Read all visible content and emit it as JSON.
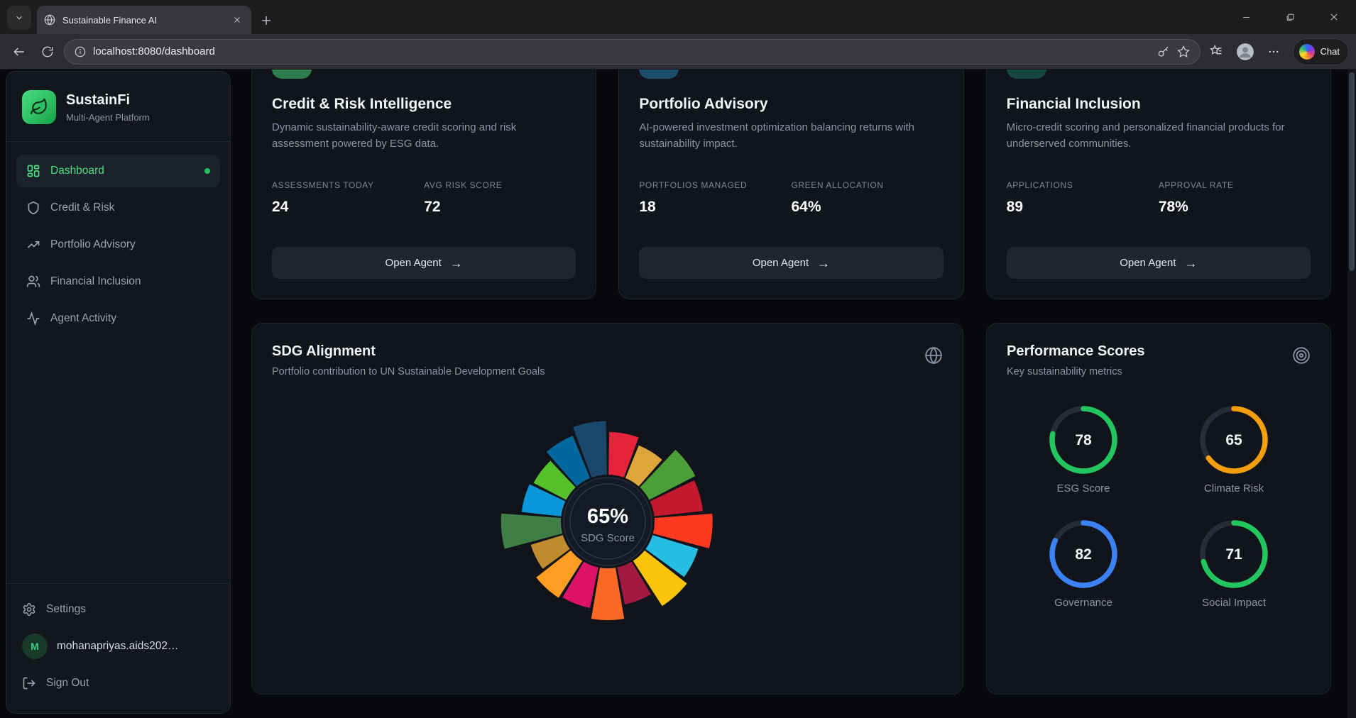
{
  "browser": {
    "tab_title": "Sustainable Finance AI",
    "url": "localhost:8080/dashboard",
    "chat_label": "Chat"
  },
  "sidebar": {
    "brand": {
      "name": "SustainFi",
      "subtitle": "Multi-Agent Platform"
    },
    "nav": [
      {
        "label": "Dashboard",
        "icon": "dashboard-grid-icon",
        "active": true
      },
      {
        "label": "Credit & Risk",
        "icon": "shield-icon",
        "active": false
      },
      {
        "label": "Portfolio Advisory",
        "icon": "trending-up-icon",
        "active": false
      },
      {
        "label": "Financial Inclusion",
        "icon": "users-icon",
        "active": false
      },
      {
        "label": "Agent Activity",
        "icon": "activity-icon",
        "active": false
      }
    ],
    "footer": {
      "settings_label": "Settings",
      "user_initial": "M",
      "user_email": "mohanapriyas.aids202…",
      "signout_label": "Sign Out"
    }
  },
  "agent_cards": [
    {
      "title": "Credit & Risk Intelligence",
      "description": "Dynamic sustainability-aware credit scoring and risk assessment powered by ESG data.",
      "badge_color": "#2e7d4f",
      "stats": [
        {
          "label": "ASSESSMENTS TODAY",
          "value": "24"
        },
        {
          "label": "AVG RISK SCORE",
          "value": "72"
        }
      ],
      "button_label": "Open Agent",
      "button_arrow": "→"
    },
    {
      "title": "Portfolio Advisory",
      "description": "AI-powered investment optimization balancing returns with sustainability impact.",
      "badge_color": "#1c4e6b",
      "stats": [
        {
          "label": "PORTFOLIOS MANAGED",
          "value": "18"
        },
        {
          "label": "GREEN ALLOCATION",
          "value": "64%"
        }
      ],
      "button_label": "Open Agent",
      "button_arrow": "→"
    },
    {
      "title": "Financial Inclusion",
      "description": "Micro-credit scoring and personalized financial products for underserved communities.",
      "badge_color": "#15483f",
      "stats": [
        {
          "label": "APPLICATIONS",
          "value": "89"
        },
        {
          "label": "APPROVAL RATE",
          "value": "78%"
        }
      ],
      "button_label": "Open Agent",
      "button_arrow": "→"
    }
  ],
  "sdg_card": {
    "title": "SDG Alignment",
    "subtitle": "Portfolio contribution to UN Sustainable Development Goals"
  },
  "performance_card": {
    "title": "Performance Scores",
    "subtitle": "Key sustainability metrics"
  },
  "chart_data": [
    {
      "type": "radial-bar",
      "title": "SDG Alignment",
      "center_value": "65%",
      "center_label": "SDG Score",
      "value_range": [
        0,
        100
      ],
      "legend": "17 UN SDG wedges, official SDG palette, bar length = alignment score (estimated from pixels)",
      "segments": [
        {
          "label": "SDG 1",
          "value": 70,
          "color": "#E5243B"
        },
        {
          "label": "SDG 2",
          "value": 58,
          "color": "#DDA63A"
        },
        {
          "label": "SDG 3",
          "value": 85,
          "color": "#4C9F38"
        },
        {
          "label": "SDG 4",
          "value": 80,
          "color": "#C5192D"
        },
        {
          "label": "SDG 5",
          "value": 95,
          "color": "#FF3A21"
        },
        {
          "label": "SDG 6",
          "value": 78,
          "color": "#26BDE2"
        },
        {
          "label": "SDG 7",
          "value": 88,
          "color": "#FCC30B"
        },
        {
          "label": "SDG 8",
          "value": 62,
          "color": "#A21942"
        },
        {
          "label": "SDG 9",
          "value": 85,
          "color": "#FD6925"
        },
        {
          "label": "SDG 10",
          "value": 68,
          "color": "#DD1367"
        },
        {
          "label": "SDG 11",
          "value": 72,
          "color": "#FD9D24"
        },
        {
          "label": "SDG 12",
          "value": 55,
          "color": "#BF8B2E"
        },
        {
          "label": "SDG 13",
          "value": 98,
          "color": "#3F7E44"
        },
        {
          "label": "SDG 14",
          "value": 65,
          "color": "#0A97D9"
        },
        {
          "label": "SDG 15",
          "value": 60,
          "color": "#56C02B"
        },
        {
          "label": "SDG 16",
          "value": 75,
          "color": "#00689D"
        },
        {
          "label": "SDG 17",
          "value": 88,
          "color": "#19486A"
        }
      ]
    },
    {
      "type": "gauge",
      "title": "Performance Scores",
      "max": 100,
      "gauges": [
        {
          "label": "ESG Score",
          "value": 78,
          "color": "#22c55e"
        },
        {
          "label": "Climate Risk",
          "value": 65,
          "color": "#f59e0b"
        },
        {
          "label": "Governance",
          "value": 82,
          "color": "#3b82f6"
        },
        {
          "label": "Social Impact",
          "value": 71,
          "color": "#22c55e"
        }
      ]
    }
  ],
  "colors": {
    "accent_green": "#4ade80",
    "gauge_track": "#262c38",
    "page_bg": "#08090d",
    "card_bg": "#11141b"
  }
}
